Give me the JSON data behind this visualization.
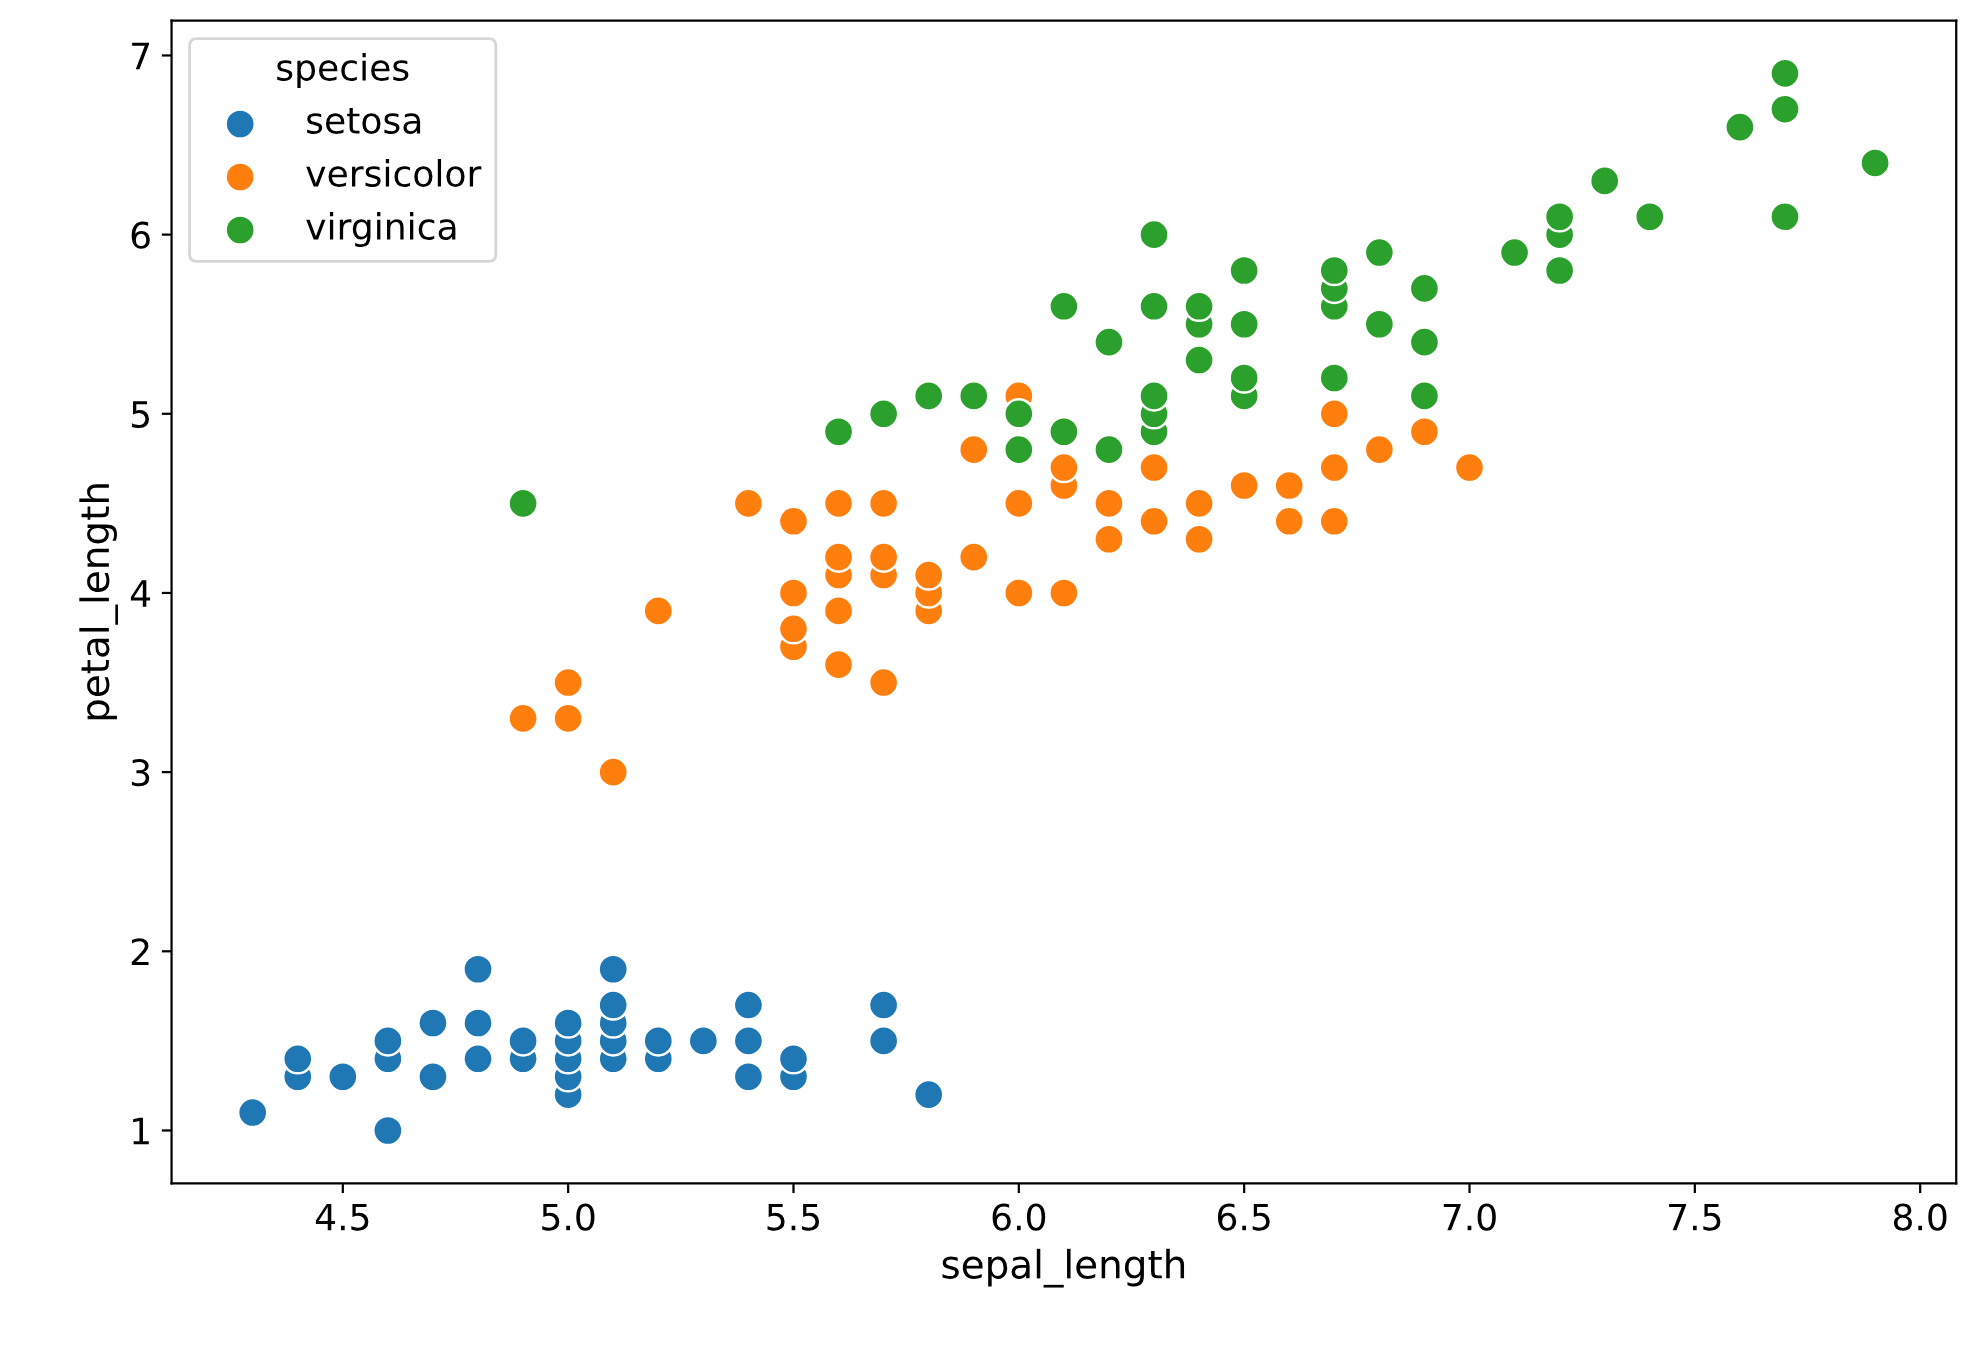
{
  "chart_data": {
    "type": "scatter",
    "xlabel": "sepal_length",
    "ylabel": "petal_length",
    "legend_title": "species",
    "legend": "top left",
    "grid": false,
    "marker": "circle",
    "xlim": [
      4.12,
      8.08
    ],
    "ylim": [
      0.705,
      7.195
    ],
    "xticks": [
      4.5,
      {
        "value": 5,
        "label": "5.0"
      },
      5.5,
      {
        "value": 6,
        "label": "6.0"
      },
      6.5,
      {
        "value": 7,
        "label": "7.0"
      },
      7.5,
      {
        "value": 8,
        "label": "8.0"
      }
    ],
    "yticks": [
      1,
      2,
      3,
      4,
      5,
      6,
      7
    ],
    "series": [
      {
        "name": "setosa",
        "color": "#1f77b4",
        "x": [
          4.3,
          4.4,
          4.4,
          4.5,
          4.6,
          4.6,
          4.6,
          4.7,
          4.7,
          4.8,
          4.8,
          4.8,
          4.9,
          4.9,
          5.0,
          5.0,
          5.0,
          5.0,
          5.0,
          5.1,
          5.1,
          5.1,
          5.1,
          5.1,
          5.2,
          5.2,
          5.3,
          5.4,
          5.4,
          5.4,
          5.5,
          5.5,
          5.7,
          5.7,
          5.8
        ],
        "values": [
          1.1,
          1.3,
          1.4,
          1.3,
          1.0,
          1.4,
          1.5,
          1.3,
          1.6,
          1.4,
          1.6,
          1.9,
          1.4,
          1.5,
          1.2,
          1.3,
          1.4,
          1.5,
          1.6,
          1.4,
          1.5,
          1.6,
          1.7,
          1.9,
          1.4,
          1.5,
          1.5,
          1.3,
          1.5,
          1.7,
          1.3,
          1.4,
          1.5,
          1.7,
          1.2
        ]
      },
      {
        "name": "versicolor",
        "color": "#ff7f0e",
        "x": [
          4.9,
          5.0,
          5.0,
          5.1,
          5.2,
          5.4,
          5.5,
          5.5,
          5.5,
          5.5,
          5.6,
          5.6,
          5.6,
          5.6,
          5.6,
          5.7,
          5.7,
          5.7,
          5.7,
          5.8,
          5.8,
          5.8,
          5.9,
          5.9,
          6.0,
          6.0,
          6.0,
          6.1,
          6.1,
          6.1,
          6.2,
          6.2,
          6.3,
          6.3,
          6.4,
          6.4,
          6.5,
          6.6,
          6.6,
          6.7,
          6.7,
          6.7,
          6.8,
          6.9,
          7.0
        ],
        "values": [
          3.3,
          3.3,
          3.5,
          3.0,
          3.9,
          4.5,
          3.7,
          3.8,
          4.0,
          4.4,
          3.6,
          3.9,
          4.1,
          4.2,
          4.5,
          3.5,
          4.1,
          4.2,
          4.5,
          3.9,
          4.0,
          4.1,
          4.2,
          4.8,
          4.0,
          4.5,
          5.1,
          4.0,
          4.6,
          4.7,
          4.3,
          4.5,
          4.4,
          4.7,
          4.3,
          4.5,
          4.6,
          4.4,
          4.6,
          4.4,
          4.7,
          5.0,
          4.8,
          4.9,
          4.7
        ]
      },
      {
        "name": "virginica",
        "color": "#2ca02c",
        "x": [
          4.9,
          5.6,
          5.7,
          5.8,
          5.9,
          6.0,
          6.0,
          6.1,
          6.1,
          6.2,
          6.2,
          6.3,
          6.3,
          6.3,
          6.3,
          6.3,
          6.4,
          6.4,
          6.4,
          6.5,
          6.5,
          6.5,
          6.5,
          6.7,
          6.7,
          6.7,
          6.7,
          6.8,
          6.8,
          6.9,
          6.9,
          6.9,
          7.1,
          7.2,
          7.2,
          7.2,
          7.3,
          7.4,
          7.6,
          7.7,
          7.7,
          7.7,
          7.9
        ],
        "values": [
          4.5,
          4.9,
          5.0,
          5.1,
          5.1,
          4.8,
          5.0,
          4.9,
          5.6,
          4.8,
          5.4,
          4.9,
          5.0,
          5.1,
          5.6,
          6.0,
          5.3,
          5.5,
          5.6,
          5.1,
          5.2,
          5.5,
          5.8,
          5.2,
          5.6,
          5.7,
          5.8,
          5.5,
          5.9,
          5.1,
          5.4,
          5.7,
          5.9,
          5.8,
          6.0,
          6.1,
          6.3,
          6.1,
          6.6,
          6.1,
          6.7,
          6.9,
          6.4
        ]
      }
    ]
  }
}
